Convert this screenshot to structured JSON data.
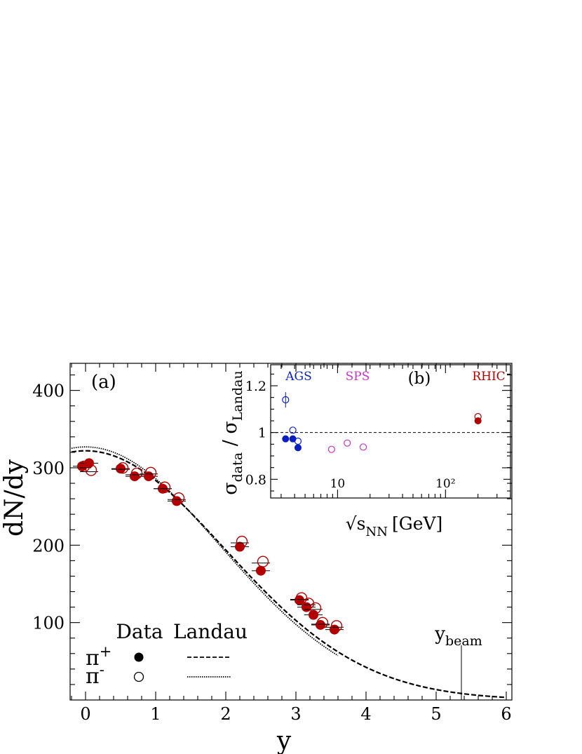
{
  "chart_data": [
    {
      "panel_label": "(a)",
      "type": "scatter",
      "xlabel": "y",
      "ylabel": "dN/dy",
      "xlim": [
        -0.22,
        6.08
      ],
      "ylim": [
        0,
        435
      ],
      "x_ticks": [
        0,
        1,
        2,
        3,
        4,
        5,
        6
      ],
      "x_tick_labels": [
        "0",
        "1",
        "2",
        "3",
        "4",
        "5",
        "6"
      ],
      "y_ticks": [
        100,
        200,
        300,
        400
      ],
      "y_tick_labels": [
        "100",
        "200",
        "300",
        "400"
      ],
      "legend": {
        "header_data": "Data",
        "header_model": "Landau",
        "series_labels": [
          "π+",
          "π-"
        ]
      },
      "annotation": {
        "text": "y_beam",
        "main": "y",
        "sub": "beam",
        "x": 5.36
      },
      "series": [
        {
          "name": "π+",
          "marker": "filled-circle",
          "color": "#b30000",
          "points": [
            {
              "x": -0.05,
              "y": 302
            },
            {
              "x": 0.05,
              "y": 306
            },
            {
              "x": 0.5,
              "y": 299
            },
            {
              "x": 0.7,
              "y": 289
            },
            {
              "x": 0.9,
              "y": 289
            },
            {
              "x": 1.1,
              "y": 273
            },
            {
              "x": 1.3,
              "y": 257
            },
            {
              "x": 2.2,
              "y": 198
            },
            {
              "x": 2.5,
              "y": 167
            },
            {
              "x": 3.05,
              "y": 129
            },
            {
              "x": 3.15,
              "y": 120
            },
            {
              "x": 3.25,
              "y": 110
            },
            {
              "x": 3.35,
              "y": 97
            },
            {
              "x": 3.55,
              "y": 91
            }
          ]
        },
        {
          "name": "π-",
          "marker": "open-circle",
          "color": "#b30000",
          "points": [
            {
              "x": -0.05,
              "y": 300
            },
            {
              "x": 0.05,
              "y": 295
            },
            {
              "x": 0.5,
              "y": 298
            },
            {
              "x": 0.7,
              "y": 291
            },
            {
              "x": 0.9,
              "y": 292
            },
            {
              "x": 1.1,
              "y": 273
            },
            {
              "x": 1.3,
              "y": 259
            },
            {
              "x": 2.2,
              "y": 203
            },
            {
              "x": 2.5,
              "y": 177
            },
            {
              "x": 3.05,
              "y": 130
            },
            {
              "x": 3.15,
              "y": 123
            },
            {
              "x": 3.25,
              "y": 117
            },
            {
              "x": 3.35,
              "y": 98
            },
            {
              "x": 3.55,
              "y": 94
            }
          ]
        }
      ],
      "curves": [
        {
          "name": "π+ Landau",
          "style": "dashed",
          "peak": 322,
          "sigma": 1.985,
          "x_max": 6.0
        },
        {
          "name": "π- Landau",
          "style": "dotted",
          "peak": 327,
          "sigma": 1.93,
          "x_max": 3.6
        }
      ]
    },
    {
      "panel_label": "(b)",
      "type": "scatter",
      "xlabel": "√s_NN [GeV]",
      "xlabel_parts": {
        "root": "√s",
        "sub": "NN",
        "unit": "[GeV]"
      },
      "ylabel": "σ_data / σ_Landau",
      "ylabel_parts": {
        "sigma1": "σ",
        "sub1": "data",
        "slash": " / ",
        "sigma2": "σ",
        "sub2": "Landau"
      },
      "x_scale": "log",
      "xlim": [
        2.4,
        400
      ],
      "ylim": [
        0.72,
        1.29
      ],
      "x_ticks": [
        10,
        100
      ],
      "x_tick_labels": [
        "10",
        "10²"
      ],
      "y_ticks": [
        0.8,
        1.0,
        1.2
      ],
      "y_tick_labels": [
        "0.8",
        "1",
        "1.2"
      ],
      "reference_line": {
        "y": 1.0,
        "style": "dashed"
      },
      "groups": [
        {
          "label": "AGS",
          "color": "#0a1fc0"
        },
        {
          "label": "SPS",
          "color": "#cc33cc"
        },
        {
          "label": "RHIC",
          "color": "#b30000"
        }
      ],
      "series": [
        {
          "name": "π+",
          "marker": "filled-circle",
          "points": [
            {
              "x": 3.3,
              "y": 0.973,
              "group": "AGS"
            },
            {
              "x": 3.85,
              "y": 0.973,
              "group": "AGS"
            },
            {
              "x": 4.3,
              "y": 0.935,
              "group": "AGS"
            },
            {
              "x": 200,
              "y": 1.05,
              "group": "RHIC"
            }
          ]
        },
        {
          "name": "π-",
          "marker": "open-circle",
          "points": [
            {
              "x": 3.3,
              "y": 1.14,
              "group": "AGS"
            },
            {
              "x": 3.85,
              "y": 1.01,
              "group": "AGS"
            },
            {
              "x": 4.3,
              "y": 0.963,
              "group": "AGS"
            },
            {
              "x": 8.8,
              "y": 0.928,
              "group": "SPS"
            },
            {
              "x": 12.3,
              "y": 0.955,
              "group": "SPS"
            },
            {
              "x": 17.3,
              "y": 0.938,
              "group": "SPS"
            },
            {
              "x": 200,
              "y": 1.068,
              "group": "RHIC"
            }
          ]
        }
      ]
    }
  ]
}
